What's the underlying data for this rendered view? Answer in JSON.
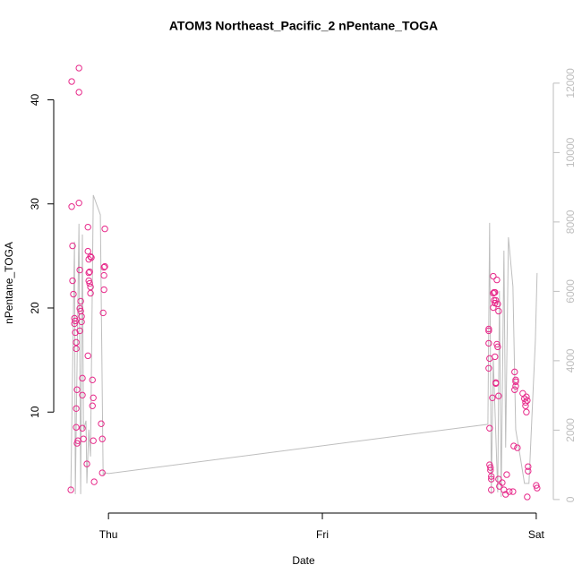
{
  "chart_data": {
    "type": "scatter",
    "title": "ATOM3 Northeast_Pacific_2 nPentane_TOGA",
    "x_label": "Date",
    "y_label": "nPentane_TOGA",
    "xlim": [
      -0.256,
      2.08
    ],
    "xticks": [
      {
        "value": 0,
        "label": "Thu"
      },
      {
        "value": 1,
        "label": "Fri"
      },
      {
        "value": 2,
        "label": "Sat"
      }
    ],
    "ylim": [
      0.3,
      44.6
    ],
    "yticks": [
      10,
      20,
      30,
      40
    ],
    "y2lim": [
      -390,
      12900
    ],
    "y2ticks": [
      0,
      2000,
      4000,
      6000,
      8000,
      10000,
      12000
    ],
    "series": [
      {
        "color": "#e7298a",
        "marker": "circle",
        "x": [
          -0.176,
          -0.172,
          -0.172,
          -0.168,
          -0.168,
          -0.164,
          -0.159,
          -0.159,
          -0.155,
          -0.155,
          -0.151,
          -0.151,
          -0.147,
          -0.151,
          -0.151,
          -0.147,
          -0.143,
          -0.138,
          -0.138,
          -0.138,
          -0.134,
          -0.134,
          -0.134,
          -0.13,
          -0.13,
          -0.126,
          -0.126,
          -0.122,
          -0.122,
          -0.122,
          -0.117,
          -0.101,
          -0.096,
          -0.096,
          -0.092,
          -0.096,
          -0.092,
          -0.092,
          -0.088,
          -0.084,
          -0.088,
          -0.084,
          -0.08,
          -0.075,
          -0.075,
          -0.071,
          -0.071,
          -0.067,
          -0.084,
          -0.034,
          -0.029,
          -0.029,
          -0.025,
          -0.021,
          -0.021,
          -0.021,
          -0.017,
          -0.017,
          1.778,
          1.778,
          1.778,
          1.782,
          1.778,
          1.782,
          1.782,
          1.786,
          1.786,
          1.79,
          1.79,
          1.79,
          1.795,
          1.799,
          1.799,
          1.799,
          1.803,
          1.803,
          1.807,
          1.807,
          1.807,
          1.811,
          1.811,
          1.811,
          1.816,
          1.816,
          1.82,
          1.82,
          1.824,
          1.824,
          1.824,
          1.828,
          1.841,
          1.849,
          1.857,
          1.862,
          1.874,
          1.891,
          1.895,
          1.899,
          1.899,
          1.904,
          1.904,
          1.904,
          1.912,
          1.937,
          1.945,
          1.95,
          1.95,
          1.954,
          1.958,
          1.954,
          1.958,
          1.962,
          1.962,
          2.0,
          2.004
        ],
        "values": [
          2.53,
          41.76,
          29.74,
          25.97,
          22.62,
          21.33,
          19.01,
          18.5,
          18.76,
          17.64,
          16.7,
          16.09,
          12.15,
          10.34,
          8.54,
          7.0,
          7.25,
          43.05,
          40.73,
          30.09,
          23.65,
          19.96,
          17.81,
          20.65,
          19.7,
          19.19,
          18.67,
          13.26,
          11.63,
          8.45,
          7.42,
          5.02,
          27.77,
          25.45,
          24.68,
          15.41,
          23.39,
          22.62,
          22.36,
          24.94,
          23.48,
          22.02,
          24.85,
          13.09,
          10.6,
          11.37,
          7.25,
          3.3,
          21.42,
          8.88,
          7.42,
          4.16,
          19.53,
          21.76,
          23.91,
          23.13,
          23.99,
          27.6,
          17.98,
          17.81,
          16.61,
          15.15,
          14.21,
          8.45,
          4.94,
          4.68,
          4.42,
          3.82,
          3.56,
          2.53,
          11.37,
          23.05,
          21.42,
          20.04,
          21.5,
          20.73,
          21.5,
          20.47,
          15.32,
          20.73,
          12.75,
          12.83,
          16.52,
          22.7,
          16.27,
          20.39,
          19.7,
          11.55,
          3.56,
          2.87,
          3.22,
          2.53,
          2.1,
          3.99,
          2.36,
          2.36,
          6.74,
          13.86,
          12.15,
          12.92,
          12.49,
          13.09,
          6.57,
          11.8,
          11.29,
          10.94,
          10.6,
          11.46,
          11.12,
          10.0,
          1.85,
          4.33,
          4.76,
          2.96,
          2.7
        ]
      },
      {
        "type": "line",
        "color": "#bebebe",
        "axis": "y2",
        "x": [
          -0.176,
          -0.159,
          -0.155,
          -0.138,
          -0.13,
          -0.122,
          -0.117,
          -0.105,
          -0.101,
          -0.092,
          -0.084,
          -0.071,
          -0.038,
          -0.025,
          -0.017,
          0,
          1.774,
          1.782,
          1.79,
          1.799,
          1.82,
          1.828,
          1.836,
          1.849,
          1.857,
          1.87,
          1.891,
          1.904,
          1.925,
          1.945,
          1.966,
          1.979,
          1.996,
          2.004
        ],
        "values": [
          258,
          7432,
          155,
          7948,
          155,
          7639,
          2013,
          2271,
          465,
          2013,
          1239,
          8774,
          8206,
          723,
          774,
          748,
          2168,
          7974,
          155,
          4077,
          206,
          6013,
          77,
          7174,
          1497,
          7561,
          6142,
          2013,
          1239,
          465,
          465,
          2271,
          4594,
          6529
        ]
      }
    ]
  }
}
